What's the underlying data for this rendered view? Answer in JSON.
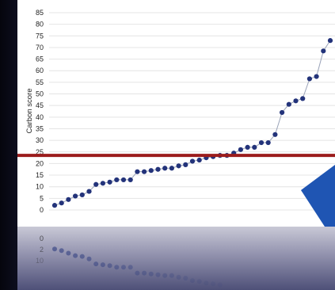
{
  "chart_data": {
    "type": "scatter",
    "title": "",
    "xlabel": "",
    "ylabel": "Carbon score",
    "ylim": [
      0,
      85
    ],
    "yticks": [
      0,
      5,
      10,
      15,
      20,
      25,
      30,
      35,
      40,
      45,
      50,
      55,
      60,
      65,
      70,
      75,
      80,
      85
    ],
    "grid": true,
    "threshold": 23.5,
    "reflection_ticks": [
      "0",
      "2",
      "10"
    ],
    "series": [
      {
        "marker_color": "#23337a",
        "line_color": "#9aa3b8",
        "values": [
          2,
          3,
          4.5,
          6,
          6.5,
          8,
          11,
          11.5,
          12,
          13,
          13,
          13,
          16.5,
          16.5,
          17,
          17.5,
          18,
          18,
          19,
          19.5,
          21,
          21.5,
          22.5,
          23,
          23.5,
          23.5,
          24.5,
          26,
          27,
          27,
          29,
          29,
          32.5,
          42,
          45.5,
          47,
          48,
          56.5,
          57.5,
          68.5,
          73
        ]
      }
    ]
  },
  "colors": {
    "threshold_line": "#9b1c1c",
    "arrow": "#1f55b3",
    "grid": "#e4e4e4"
  }
}
